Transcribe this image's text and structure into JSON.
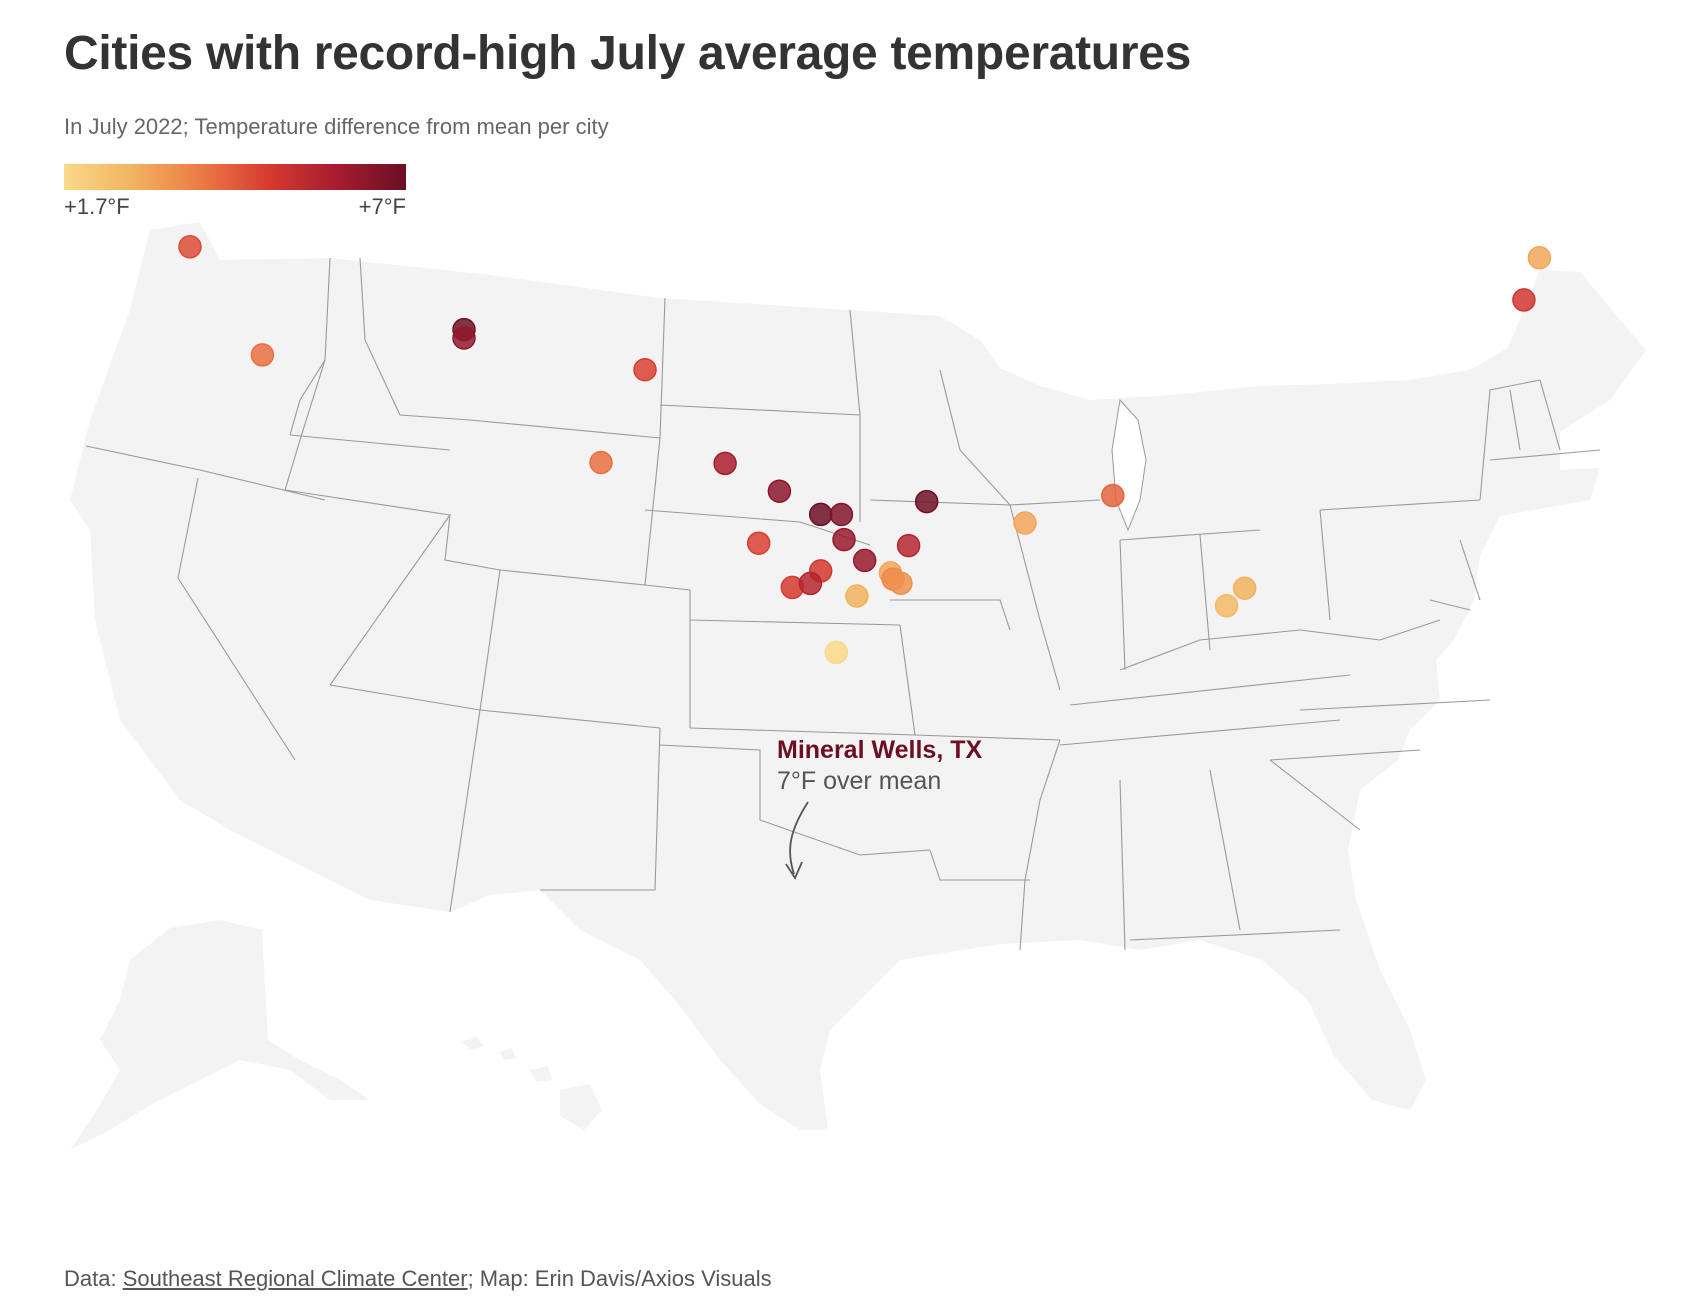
{
  "title": "Cities with record-high July average temperatures",
  "subtitle": "In July 2022; Temperature difference from mean per city",
  "legend": {
    "min_label": "+1.7°F",
    "max_label": "+7°F",
    "min_value": 1.7,
    "max_value": 7,
    "colors": [
      "#f9d98a",
      "#f2b35f",
      "#ec7b45",
      "#d63a2f",
      "#a51c30",
      "#6b0f24"
    ]
  },
  "annotation": {
    "city": "Mineral Wells, TX",
    "text": "7°F over mean",
    "name_color": "#6b0f24"
  },
  "footer": {
    "data_prefix": "Data: ",
    "source": "Southeast Regional Climate Center",
    "rest": "; Map: Erin Davis/Axios Visuals"
  },
  "map": {
    "land_color": "#f3f3f3",
    "border_color": "#999999"
  },
  "chart_data": {
    "type": "scatter",
    "series_unit": "°F over mean",
    "points": [
      {
        "lon": -122.5,
        "lat": 44.3,
        "anomaly": 4.6
      },
      {
        "lon": -119.7,
        "lat": 39.4,
        "anomaly": 4.0
      },
      {
        "lon": -111.9,
        "lat": 41.2,
        "anomaly": 6.9
      },
      {
        "lon": -111.9,
        "lat": 40.8,
        "anomaly": 6.3
      },
      {
        "lon": -104.9,
        "lat": 39.6,
        "anomaly": 4.8
      },
      {
        "lon": -106.6,
        "lat": 35.1,
        "anomaly": 4.0
      },
      {
        "lon": -101.8,
        "lat": 35.2,
        "anomaly": 5.9
      },
      {
        "lon": -99.7,
        "lat": 33.9,
        "anomaly": 6.4
      },
      {
        "lon": -98.1,
        "lat": 32.8,
        "anomaly": 7.0
      },
      {
        "lon": -97.3,
        "lat": 32.8,
        "anomaly": 6.6
      },
      {
        "lon": -94.0,
        "lat": 33.4,
        "anomaly": 6.9
      },
      {
        "lon": -100.5,
        "lat": 31.4,
        "anomaly": 4.8
      },
      {
        "lon": -97.2,
        "lat": 31.6,
        "anomaly": 6.2
      },
      {
        "lon": -94.7,
        "lat": 31.3,
        "anomaly": 5.6
      },
      {
        "lon": -98.1,
        "lat": 30.1,
        "anomaly": 5.0
      },
      {
        "lon": -96.4,
        "lat": 30.6,
        "anomaly": 6.2
      },
      {
        "lon": -99.2,
        "lat": 29.3,
        "anomaly": 4.9
      },
      {
        "lon": -98.5,
        "lat": 29.5,
        "anomaly": 5.6
      },
      {
        "lon": -95.4,
        "lat": 30.0,
        "anomaly": 3.0
      },
      {
        "lon": -95.3,
        "lat": 29.7,
        "anomaly": 3.6
      },
      {
        "lon": -95.0,
        "lat": 29.5,
        "anomaly": 3.4
      },
      {
        "lon": -96.7,
        "lat": 28.9,
        "anomaly": 2.8
      },
      {
        "lon": -97.5,
        "lat": 26.2,
        "anomaly": 1.7
      },
      {
        "lon": -90.2,
        "lat": 32.3,
        "anomaly": 3.0
      },
      {
        "lon": -86.8,
        "lat": 33.5,
        "anomaly": 4.2
      },
      {
        "lon": -81.7,
        "lat": 28.8,
        "anomaly": 2.8
      },
      {
        "lon": -82.4,
        "lat": 28.0,
        "anomaly": 2.6
      },
      {
        "lon": -70.3,
        "lat": 43.65,
        "anomaly": 3.0
      },
      {
        "lon": -70.9,
        "lat": 41.7,
        "anomaly": 5.0
      }
    ]
  }
}
